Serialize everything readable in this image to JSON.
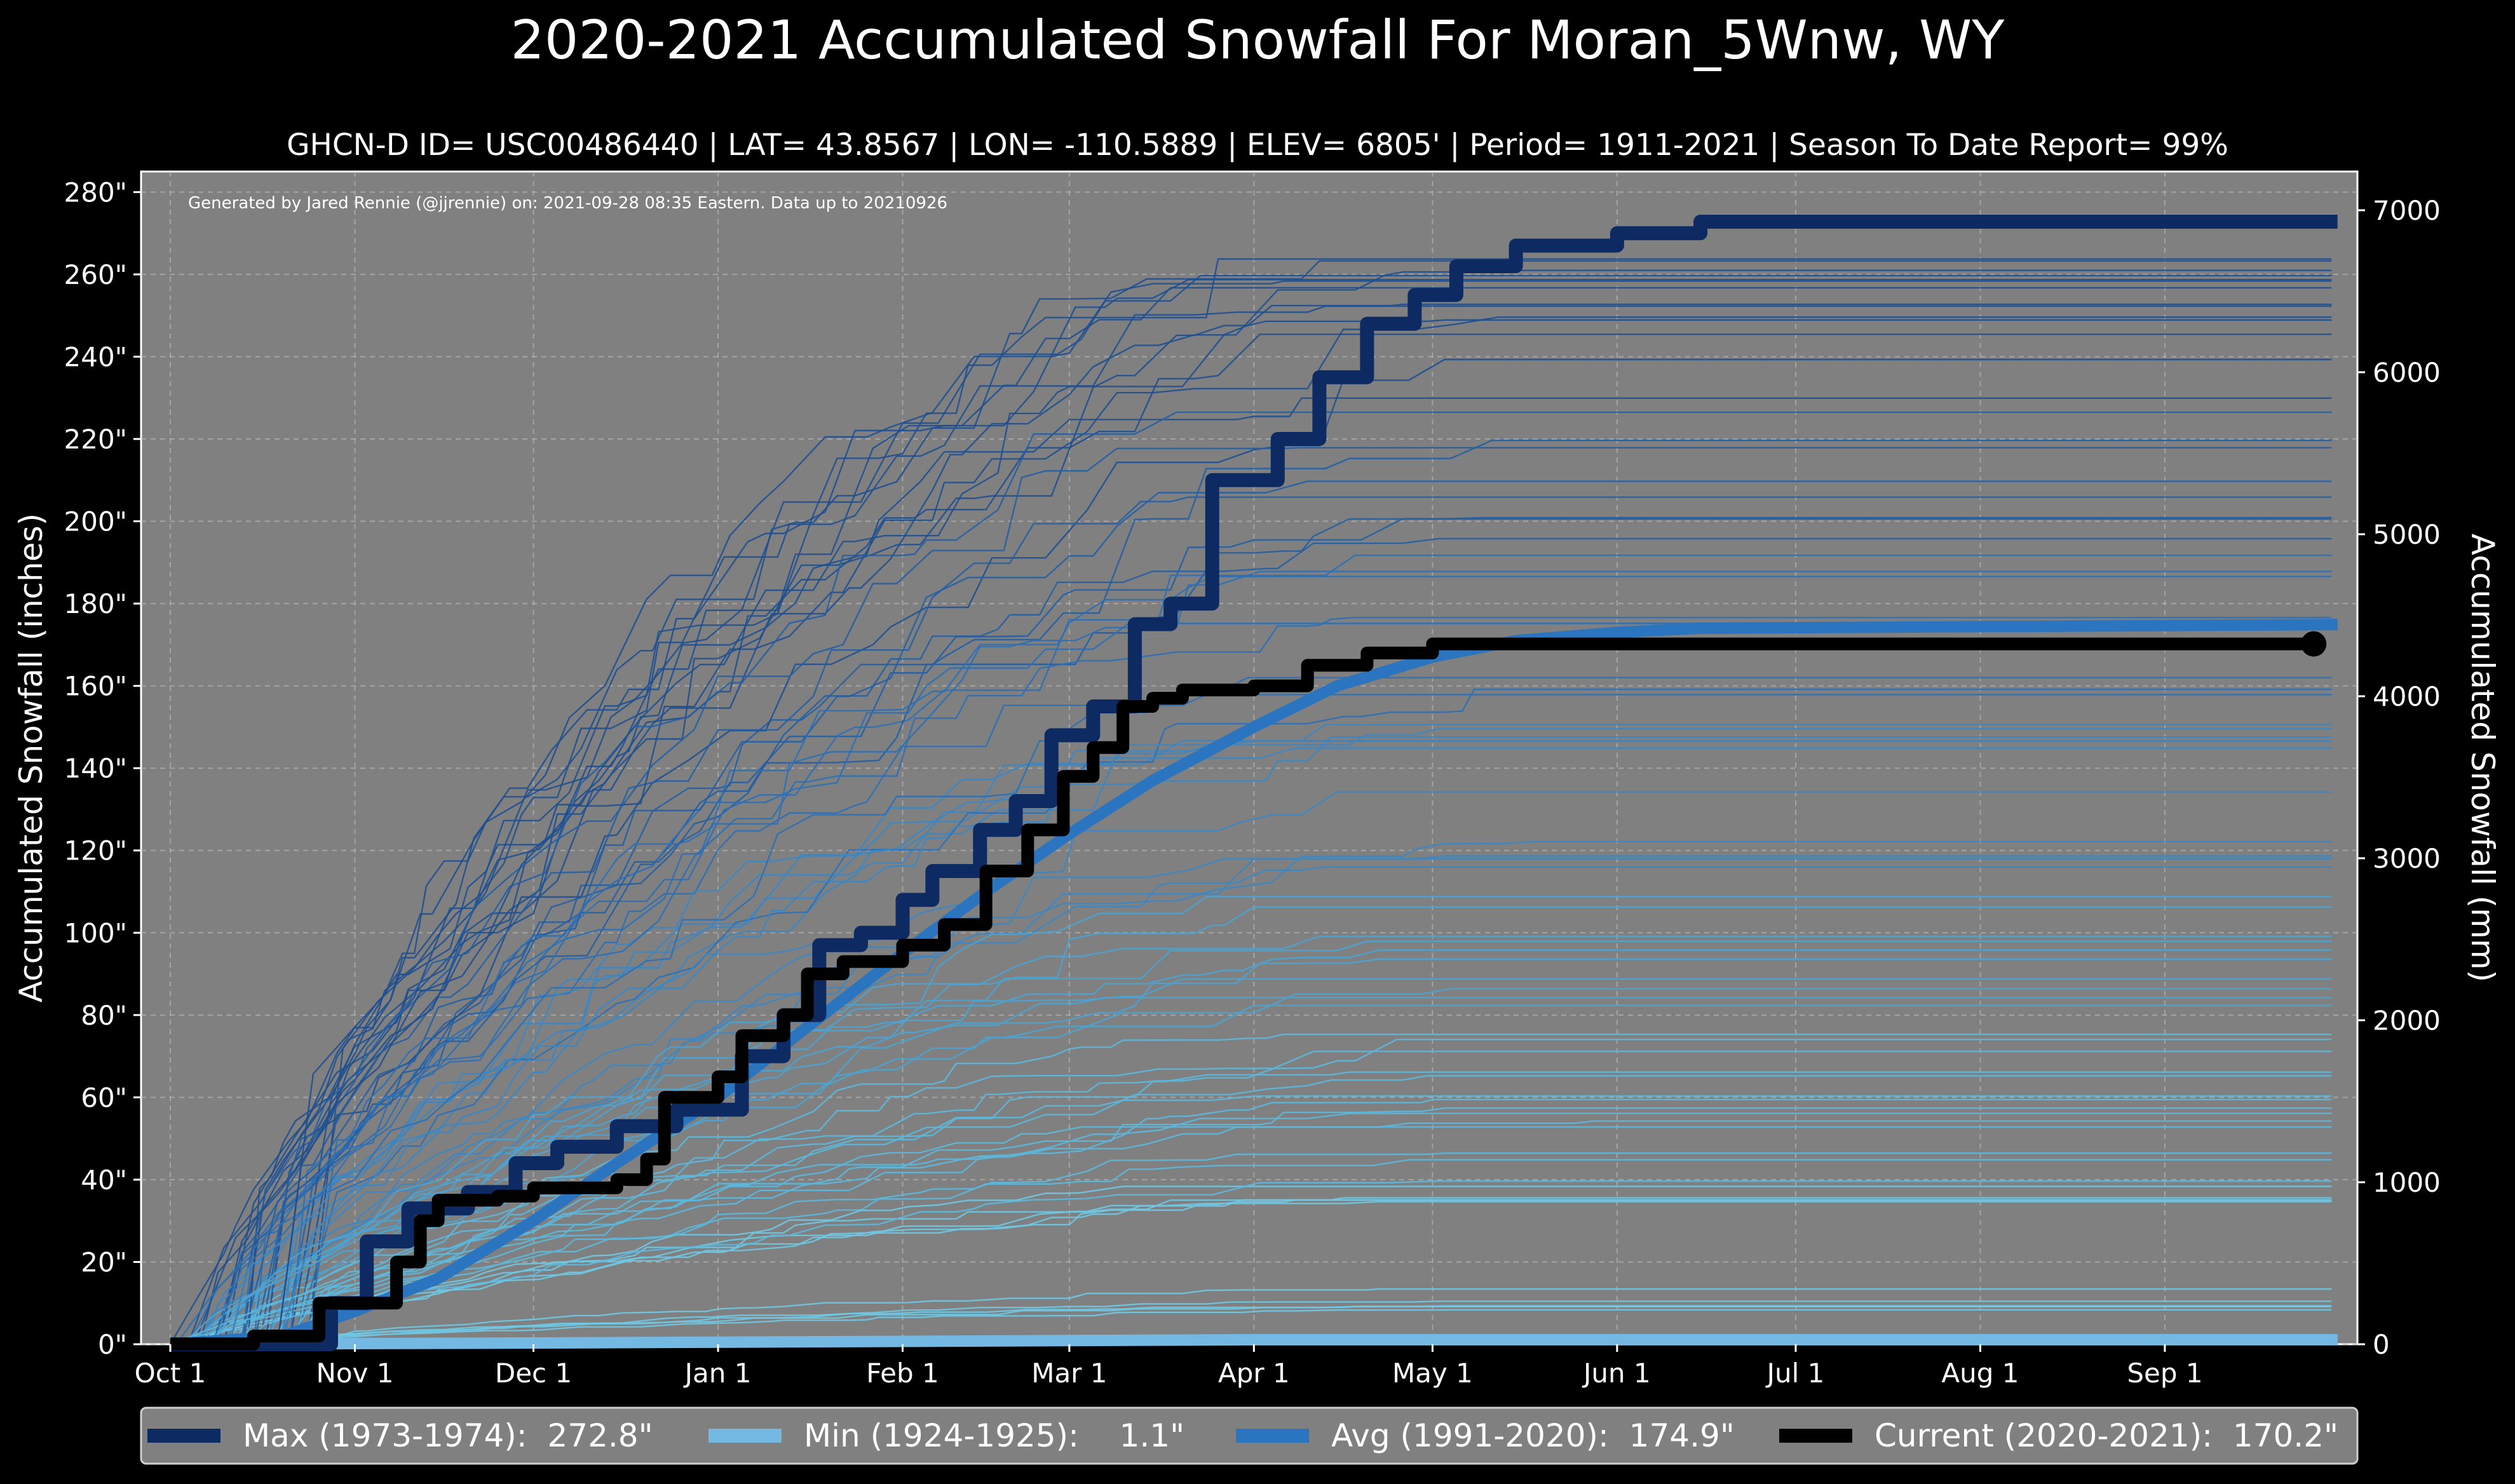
{
  "chart_data": {
    "type": "line",
    "title": "2020-2021 Accumulated Snowfall For Moran_5Wnw, WY",
    "subtitle": "GHCN-D ID= USC00486440 | LAT= 43.8567 | LON= -110.5889 | ELEV= 6805' | Period= 1911-2021 | Season To Date Report= 99%",
    "credit": "Generated by Jared Rennie (@jjrennie) on: 2021-09-28 08:35 Eastern. Data up to 20210926",
    "ylabel": "Accumulated Snowfall (inches)",
    "ylabel_right": "Accumulated Snowfall (mm)",
    "ylim": [
      0,
      285
    ],
    "ylim_right_mm": [
      0,
      7239
    ],
    "x_ticks": [
      "Oct 1",
      "Nov 1",
      "Dec 1",
      "Jan 1",
      "Feb 1",
      "Mar 1",
      "Apr 1",
      "May 1",
      "Jun 1",
      "Jul 1",
      "Aug 1",
      "Sep 1"
    ],
    "y_ticks": [
      "0\"",
      "20\"",
      "40\"",
      "60\"",
      "80\"",
      "100\"",
      "120\"",
      "140\"",
      "160\"",
      "180\"",
      "200\"",
      "220\"",
      "240\"",
      "260\"",
      "280\""
    ],
    "y_ticks_right": [
      "0",
      "1000",
      "2000",
      "3000",
      "4000",
      "5000",
      "6000",
      "7000"
    ],
    "grid": true,
    "legend_position": "bottom",
    "background": "#808080",
    "series": [
      {
        "name": "Max (1973-1974):  272.8\"",
        "color": "#0d2a63",
        "points": [
          [
            "Oct 1",
            0
          ],
          [
            "Oct 15",
            0
          ],
          [
            "Oct 28",
            10
          ],
          [
            "Nov 3",
            25
          ],
          [
            "Nov 10",
            33
          ],
          [
            "Nov 20",
            37
          ],
          [
            "Nov 28",
            44
          ],
          [
            "Dec 5",
            48
          ],
          [
            "Dec 15",
            53
          ],
          [
            "Dec 25",
            57
          ],
          [
            "Jan 5",
            70
          ],
          [
            "Jan 12",
            80
          ],
          [
            "Jan 18",
            97
          ],
          [
            "Jan 25",
            100
          ],
          [
            "Feb 1",
            108
          ],
          [
            "Feb 6",
            115
          ],
          [
            "Feb 14",
            125
          ],
          [
            "Feb 20",
            132
          ],
          [
            "Feb 26",
            148
          ],
          [
            "Mar 5",
            155
          ],
          [
            "Mar 12",
            175
          ],
          [
            "Mar 18",
            180
          ],
          [
            "Mar 25",
            210
          ],
          [
            "Apr 5",
            220
          ],
          [
            "Apr 12",
            235
          ],
          [
            "Apr 20",
            248
          ],
          [
            "Apr 28",
            255
          ],
          [
            "May 5",
            262
          ],
          [
            "May 15",
            267
          ],
          [
            "Jun 1",
            270
          ],
          [
            "Jun 15",
            272.8
          ],
          [
            "Sep 30",
            272.8
          ]
        ]
      },
      {
        "name": "Min (1924-1925):    1.1\"",
        "color": "#74b9e3",
        "points": [
          [
            "Oct 1",
            0
          ],
          [
            "Dec 1",
            0.3
          ],
          [
            "Feb 1",
            0.7
          ],
          [
            "Apr 1",
            1.1
          ],
          [
            "Sep 30",
            1.1
          ]
        ]
      },
      {
        "name": "Avg (1991-2020):  174.9\"",
        "color": "#2b74c0",
        "points": [
          [
            "Oct 1",
            0
          ],
          [
            "Oct 20",
            2
          ],
          [
            "Nov 1",
            8
          ],
          [
            "Nov 15",
            16
          ],
          [
            "Dec 1",
            30
          ],
          [
            "Dec 15",
            44
          ],
          [
            "Jan 1",
            60
          ],
          [
            "Jan 15",
            76
          ],
          [
            "Feb 1",
            95
          ],
          [
            "Feb 15",
            110
          ],
          [
            "Mar 1",
            124
          ],
          [
            "Mar 15",
            137
          ],
          [
            "Apr 1",
            150
          ],
          [
            "Apr 15",
            160
          ],
          [
            "May 1",
            167
          ],
          [
            "May 15",
            171
          ],
          [
            "Jun 1",
            173
          ],
          [
            "Jun 15",
            174
          ],
          [
            "Sep 30",
            174.9
          ]
        ]
      },
      {
        "name": "Current (2020-2021):  170.2\"",
        "color": "#000000",
        "points": [
          [
            "Oct 1",
            0
          ],
          [
            "Oct 10",
            0
          ],
          [
            "Oct 15",
            2
          ],
          [
            "Oct 25",
            2
          ],
          [
            "Oct 26",
            10
          ],
          [
            "Nov 5",
            10
          ],
          [
            "Nov 8",
            20
          ],
          [
            "Nov 12",
            30
          ],
          [
            "Nov 15",
            35
          ],
          [
            "Nov 25",
            36
          ],
          [
            "Dec 1",
            38
          ],
          [
            "Dec 15",
            40
          ],
          [
            "Dec 20",
            45
          ],
          [
            "Dec 23",
            60
          ],
          [
            "Jan 1",
            65
          ],
          [
            "Jan 5",
            75
          ],
          [
            "Jan 12",
            80
          ],
          [
            "Jan 16",
            90
          ],
          [
            "Jan 22",
            93
          ],
          [
            "Feb 1",
            97
          ],
          [
            "Feb 8",
            102
          ],
          [
            "Feb 15",
            115
          ],
          [
            "Feb 22",
            125
          ],
          [
            "Feb 28",
            138
          ],
          [
            "Mar 5",
            145
          ],
          [
            "Mar 10",
            155
          ],
          [
            "Mar 15",
            157
          ],
          [
            "Mar 20",
            159
          ],
          [
            "Apr 1",
            160
          ],
          [
            "Apr 10",
            165
          ],
          [
            "Apr 20",
            168
          ],
          [
            "May 1",
            170.2
          ],
          [
            "Sep 26",
            170.2
          ]
        ]
      }
    ]
  }
}
